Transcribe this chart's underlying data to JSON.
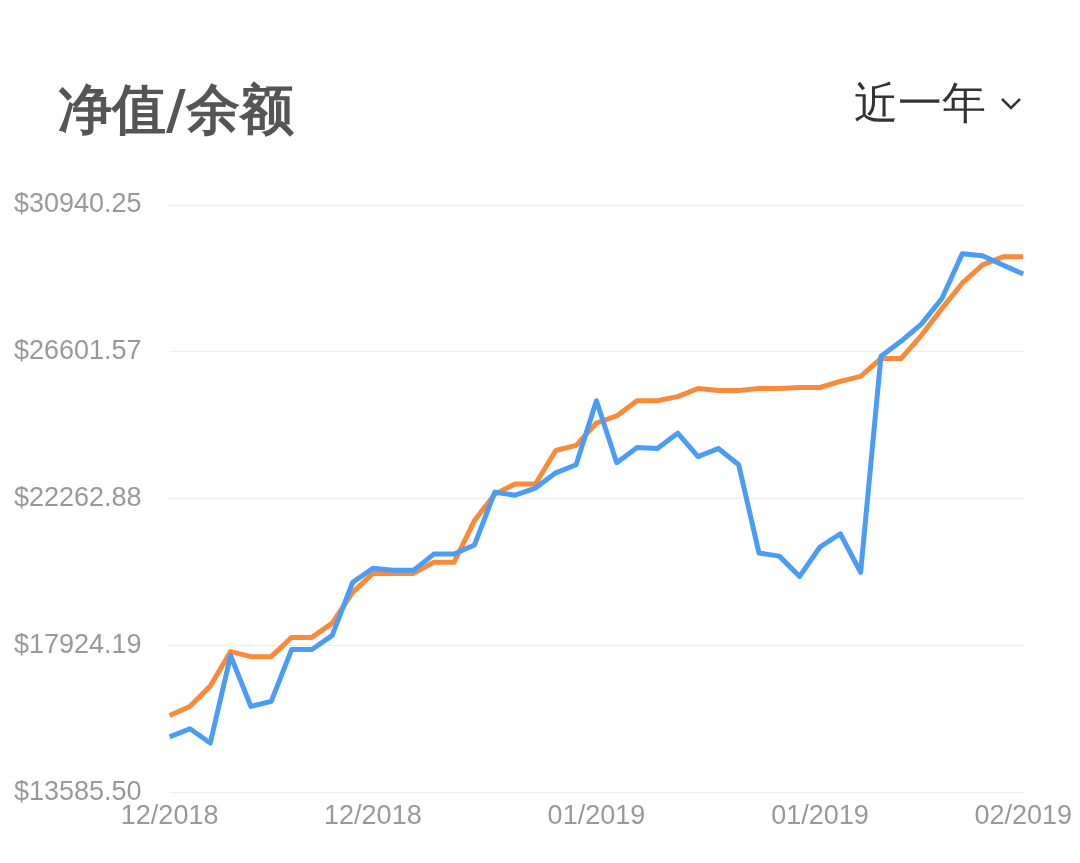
{
  "chart_data": {
    "type": "line",
    "title": "净值/余额",
    "annotations": [
      "近一年"
    ],
    "categories": [
      "12/2018",
      null,
      null,
      null,
      null,
      null,
      null,
      null,
      null,
      null,
      "12/2018",
      null,
      null,
      null,
      null,
      null,
      null,
      null,
      null,
      null,
      null,
      "01/2019",
      null,
      null,
      null,
      null,
      null,
      null,
      null,
      null,
      null,
      null,
      "01/2019",
      null,
      null,
      null,
      null,
      null,
      null,
      null,
      null,
      null,
      "02/2019"
    ],
    "ylim": [
      13585.5,
      30940.25
    ],
    "yticks": [
      {
        "value": 13585.5,
        "label": "$13585.50"
      },
      {
        "value": 17924.19,
        "label": "$17924.19"
      },
      {
        "value": 22262.88,
        "label": "$22262.88"
      },
      {
        "value": 26601.57,
        "label": "$26601.57"
      },
      {
        "value": 30940.25,
        "label": "$30940.25"
      }
    ],
    "grid": "y",
    "series": [
      {
        "color": "#4a9cf7",
        "values": [
          15230,
          15470,
          15050,
          17630,
          16130,
          16280,
          17810,
          17810,
          18230,
          19790,
          20210,
          20150,
          20150,
          20630,
          20630,
          20900,
          22460,
          22370,
          22580,
          23030,
          23270,
          25160,
          23330,
          23780,
          23750,
          24200,
          23510,
          23750,
          23270,
          20660,
          20570,
          19970,
          20840,
          21230,
          20090,
          26470,
          26920,
          27430,
          28180,
          29500,
          29440,
          29170,
          28900
        ]
      },
      {
        "color": "#f98a3a",
        "values": [
          15860,
          16130,
          16730,
          17750,
          17600,
          17600,
          18170,
          18170,
          18590,
          19490,
          20060,
          20060,
          20060,
          20390,
          20390,
          21620,
          22400,
          22700,
          22700,
          23690,
          23840,
          24500,
          24710,
          25160,
          25160,
          25280,
          25520,
          25460,
          25460,
          25520,
          25520,
          25550,
          25550,
          25730,
          25880,
          26410,
          26410,
          27100,
          27880,
          28630,
          29170,
          29410,
          29410
        ]
      }
    ]
  }
}
